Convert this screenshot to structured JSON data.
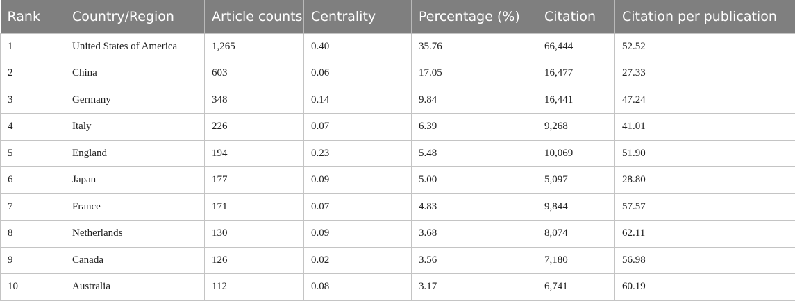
{
  "table": {
    "headers": [
      "Rank",
      "Country/Region",
      "Article counts",
      "Centrality",
      "Percentage (%)",
      "Citation",
      "Citation per publication"
    ],
    "rows": [
      [
        "1",
        "United States of America",
        "1,265",
        "0.40",
        "35.76",
        "66,444",
        "52.52"
      ],
      [
        "2",
        "China",
        "603",
        "0.06",
        "17.05",
        "16,477",
        "27.33"
      ],
      [
        "3",
        "Germany",
        "348",
        "0.14",
        "9.84",
        "16,441",
        "47.24"
      ],
      [
        "4",
        "Italy",
        "226",
        "0.07",
        "6.39",
        "9,268",
        "41.01"
      ],
      [
        "5",
        "England",
        "194",
        "0.23",
        "5.48",
        "10,069",
        "51.90"
      ],
      [
        "6",
        "Japan",
        "177",
        "0.09",
        "5.00",
        "5,097",
        "28.80"
      ],
      [
        "7",
        "France",
        "171",
        "0.07",
        "4.83",
        "9,844",
        "57.57"
      ],
      [
        "8",
        "Netherlands",
        "130",
        "0.09",
        "3.68",
        "8,074",
        "62.11"
      ],
      [
        "9",
        "Canada",
        "126",
        "0.02",
        "3.56",
        "7,180",
        "56.98"
      ],
      [
        "10",
        "Australia",
        "112",
        "0.08",
        "3.17",
        "6,741",
        "60.19"
      ]
    ]
  }
}
